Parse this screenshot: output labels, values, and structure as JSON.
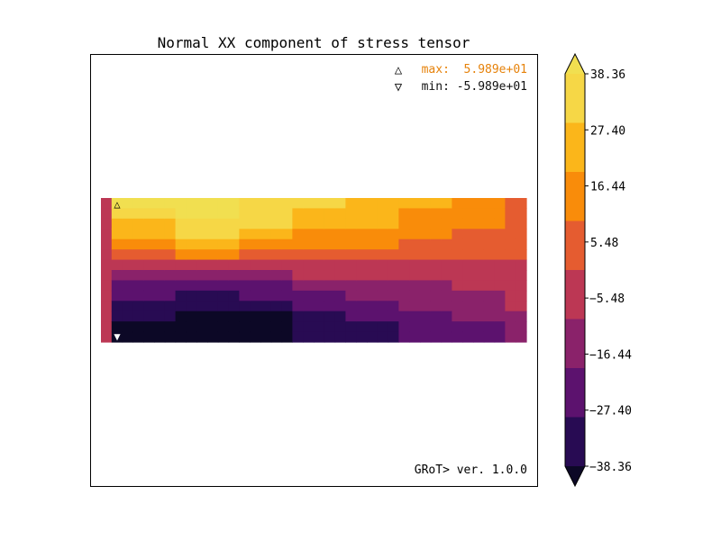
{
  "chart_data": {
    "type": "heatmap",
    "title": "Normal XX component of stress tensor",
    "annotations": {
      "max_label": "max:  5.989e+01",
      "min_label": "min: -5.989e+01",
      "max_color": "#e6820a",
      "min_color": "#111111",
      "max_marker": "△",
      "min_marker": "▽",
      "version": "GRoT> ver. 1.0.0"
    },
    "colorbar": {
      "ticks": [
        "38.36",
        "27.40",
        "16.44",
        "5.48",
        "−5.48",
        "−16.44",
        "−27.40",
        "−38.36"
      ],
      "levels": [
        38.36,
        27.4,
        16.44,
        5.48,
        -5.48,
        -16.44,
        -27.4,
        -38.36
      ],
      "colors_top_to_bottom": [
        "#f6d746",
        "#fbb61a",
        "#f98c0a",
        "#e55c30",
        "#bc3754",
        "#8a226a",
        "#5c126e",
        "#280b53"
      ],
      "over_color": "#f1df50",
      "under_color": "#0c0826",
      "extend": "both"
    },
    "field": {
      "bins": 10,
      "columns": [
        [
          4,
          4,
          4,
          4,
          4,
          4,
          4,
          4,
          4,
          4,
          4,
          4,
          4,
          4
        ],
        [
          9,
          8,
          7,
          7,
          6,
          5,
          4,
          3,
          2,
          2,
          1,
          1,
          0,
          0
        ],
        [
          9,
          8,
          7,
          7,
          6,
          5,
          4,
          3,
          2,
          2,
          1,
          1,
          0,
          0
        ],
        [
          9,
          8,
          7,
          7,
          6,
          5,
          4,
          3,
          2,
          2,
          1,
          1,
          0,
          0
        ],
        [
          9,
          8,
          7,
          7,
          6,
          5,
          4,
          3,
          2,
          2,
          1,
          1,
          0,
          0
        ],
        [
          9,
          8,
          7,
          7,
          6,
          5,
          4,
          3,
          2,
          2,
          1,
          1,
          0,
          0
        ],
        [
          9,
          8,
          7,
          7,
          6,
          5,
          4,
          3,
          2,
          2,
          1,
          1,
          0,
          0
        ],
        [
          9,
          9,
          8,
          8,
          7,
          6,
          4,
          3,
          2,
          1,
          1,
          0,
          0,
          0
        ],
        [
          9,
          9,
          8,
          8,
          7,
          6,
          4,
          3,
          2,
          1,
          1,
          0,
          0,
          0
        ],
        [
          9,
          9,
          8,
          8,
          7,
          6,
          4,
          3,
          2,
          1,
          1,
          0,
          0,
          0
        ],
        [
          9,
          9,
          8,
          8,
          7,
          6,
          4,
          3,
          2,
          1,
          1,
          0,
          0,
          0
        ],
        [
          9,
          9,
          8,
          8,
          7,
          6,
          4,
          3,
          2,
          1,
          1,
          0,
          0,
          0
        ],
        [
          9,
          9,
          8,
          8,
          7,
          6,
          4,
          3,
          2,
          1,
          1,
          0,
          0,
          0
        ],
        [
          8,
          8,
          8,
          7,
          6,
          5,
          4,
          3,
          2,
          2,
          1,
          0,
          0,
          0
        ],
        [
          8,
          8,
          8,
          7,
          6,
          5,
          4,
          3,
          2,
          2,
          1,
          0,
          0,
          0
        ],
        [
          8,
          8,
          8,
          7,
          6,
          5,
          4,
          3,
          2,
          2,
          1,
          0,
          0,
          0
        ],
        [
          8,
          8,
          8,
          7,
          6,
          5,
          4,
          3,
          2,
          2,
          1,
          0,
          0,
          0
        ],
        [
          8,
          8,
          8,
          7,
          6,
          5,
          4,
          3,
          2,
          2,
          1,
          0,
          0,
          0
        ],
        [
          8,
          7,
          7,
          6,
          6,
          5,
          4,
          4,
          3,
          2,
          2,
          1,
          1,
          1
        ],
        [
          8,
          7,
          7,
          6,
          6,
          5,
          4,
          4,
          3,
          2,
          2,
          1,
          1,
          1
        ],
        [
          8,
          7,
          7,
          6,
          6,
          5,
          4,
          4,
          3,
          2,
          2,
          1,
          1,
          1
        ],
        [
          8,
          7,
          7,
          6,
          6,
          5,
          4,
          4,
          3,
          2,
          2,
          1,
          1,
          1
        ],
        [
          8,
          7,
          7,
          6,
          6,
          5,
          4,
          4,
          3,
          2,
          2,
          1,
          1,
          1
        ],
        [
          7,
          7,
          7,
          6,
          6,
          5,
          4,
          4,
          3,
          3,
          2,
          2,
          1,
          1
        ],
        [
          7,
          7,
          7,
          6,
          6,
          5,
          4,
          4,
          3,
          3,
          2,
          2,
          1,
          1
        ],
        [
          7,
          7,
          7,
          6,
          6,
          5,
          4,
          4,
          3,
          3,
          2,
          2,
          1,
          1
        ],
        [
          7,
          7,
          7,
          6,
          6,
          5,
          4,
          4,
          3,
          3,
          2,
          2,
          1,
          1
        ],
        [
          7,
          7,
          7,
          6,
          6,
          5,
          4,
          4,
          3,
          3,
          2,
          2,
          1,
          1
        ],
        [
          7,
          6,
          6,
          6,
          5,
          5,
          4,
          4,
          3,
          3,
          3,
          2,
          2,
          2
        ],
        [
          7,
          6,
          6,
          6,
          5,
          5,
          4,
          4,
          3,
          3,
          3,
          2,
          2,
          2
        ],
        [
          7,
          6,
          6,
          6,
          5,
          5,
          4,
          4,
          3,
          3,
          3,
          2,
          2,
          2
        ],
        [
          7,
          6,
          6,
          6,
          5,
          5,
          4,
          4,
          3,
          3,
          3,
          2,
          2,
          2
        ],
        [
          7,
          6,
          6,
          6,
          5,
          5,
          4,
          4,
          3,
          3,
          3,
          2,
          2,
          2
        ],
        [
          6,
          6,
          6,
          5,
          5,
          5,
          4,
          4,
          4,
          3,
          3,
          3,
          2,
          2
        ],
        [
          6,
          6,
          6,
          5,
          5,
          5,
          4,
          4,
          4,
          3,
          3,
          3,
          2,
          2
        ],
        [
          6,
          6,
          6,
          5,
          5,
          5,
          4,
          4,
          4,
          3,
          3,
          3,
          2,
          2
        ],
        [
          6,
          6,
          6,
          5,
          5,
          5,
          4,
          4,
          4,
          3,
          3,
          3,
          2,
          2
        ],
        [
          6,
          6,
          6,
          5,
          5,
          5,
          4,
          4,
          4,
          3,
          3,
          3,
          2,
          2
        ],
        [
          5,
          5,
          5,
          5,
          5,
          5,
          4,
          4,
          4,
          4,
          4,
          3,
          3,
          3
        ],
        [
          5,
          5,
          5,
          5,
          5,
          5,
          4,
          4,
          4,
          4,
          4,
          3,
          3,
          3
        ]
      ]
    }
  }
}
